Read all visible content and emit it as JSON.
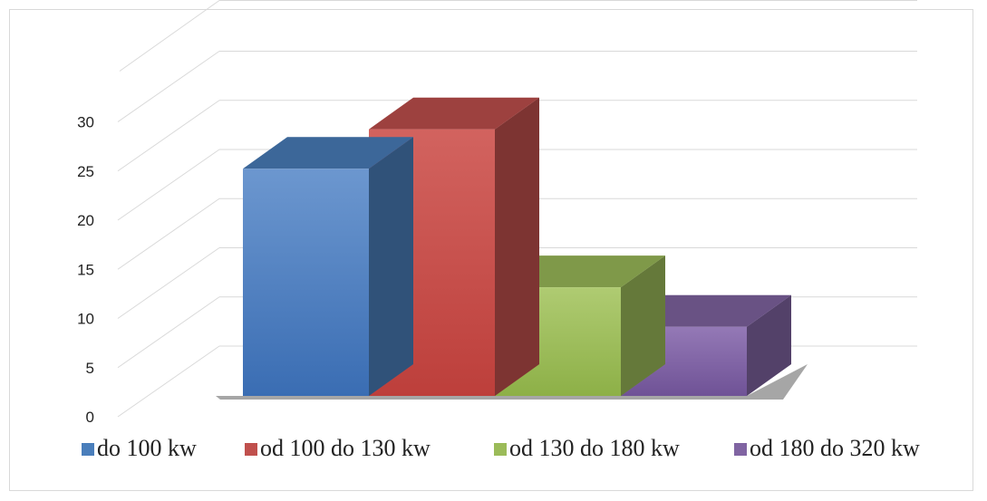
{
  "chart_data": {
    "type": "bar",
    "variant": "3d-column",
    "categories": [
      "do 100 kw",
      "od 100 do 130 kw",
      "od 130 do 180 kw",
      "od 180 do 320 kw"
    ],
    "values": [
      23,
      27,
      11,
      7
    ],
    "series": [
      {
        "name": "do 100 kw",
        "value": 23,
        "color": "#4a7ebb"
      },
      {
        "name": "od 100 do 130 kw",
        "value": 27,
        "color": "#c0504d"
      },
      {
        "name": "od 130 do 180 kw",
        "value": 11,
        "color": "#9bbb59"
      },
      {
        "name": "od 180 do 320 kw",
        "value": 7,
        "color": "#8064a2"
      }
    ],
    "title": "",
    "xlabel": "",
    "ylabel": "",
    "ylim": [
      0,
      30
    ],
    "yticks": [
      "0",
      "5",
      "10",
      "15",
      "20",
      "25",
      "30"
    ],
    "grid": true,
    "legend_position": "bottom"
  }
}
